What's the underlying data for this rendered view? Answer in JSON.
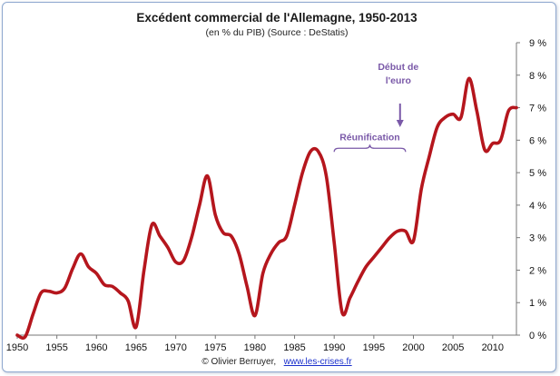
{
  "chart_data": {
    "type": "line",
    "title": "Excédent commercial de l'Allemagne, 1950-2013",
    "subtitle": "(en % du PIB) (Source : DeStatis)",
    "xlabel": "",
    "ylabel": "",
    "xlim": [
      1950,
      2013
    ],
    "ylim": [
      0,
      9
    ],
    "x_ticks": [
      1950,
      1955,
      1960,
      1965,
      1970,
      1975,
      1980,
      1985,
      1990,
      1995,
      2000,
      2005,
      2010
    ],
    "y_ticks": [
      "0 %",
      "1 %",
      "2 %",
      "3 %",
      "4 %",
      "5 %",
      "6 %",
      "7 %",
      "8 %",
      "9 %"
    ],
    "y_tick_values": [
      0,
      1,
      2,
      3,
      4,
      5,
      6,
      7,
      8,
      9
    ],
    "grid": false,
    "y_axis_side": "right",
    "series": [
      {
        "color": "#b5161d",
        "x": [
          1950,
          1951,
          1952,
          1953,
          1954,
          1955,
          1956,
          1957,
          1958,
          1959,
          1960,
          1961,
          1962,
          1963,
          1964,
          1965,
          1966,
          1967,
          1968,
          1969,
          1970,
          1971,
          1972,
          1973,
          1974,
          1975,
          1976,
          1977,
          1978,
          1979,
          1980,
          1981,
          1982,
          1983,
          1984,
          1985,
          1986,
          1987,
          1988,
          1989,
          1990,
          1991,
          1992,
          1993,
          1994,
          1995,
          1996,
          1997,
          1998,
          1999,
          2000,
          2001,
          2002,
          2003,
          2004,
          2005,
          2006,
          2007,
          2008,
          2009,
          2010,
          2011,
          2012,
          2013
        ],
        "values": [
          0.0,
          -0.05,
          0.65,
          1.3,
          1.35,
          1.3,
          1.45,
          2.05,
          2.5,
          2.1,
          1.9,
          1.55,
          1.5,
          1.3,
          1.05,
          0.25,
          2.0,
          3.4,
          3.05,
          2.7,
          2.25,
          2.3,
          3.0,
          4.0,
          4.9,
          3.7,
          3.15,
          3.05,
          2.5,
          1.5,
          0.6,
          1.9,
          2.5,
          2.85,
          3.05,
          4.0,
          5.0,
          5.65,
          5.65,
          4.9,
          2.85,
          0.7,
          1.15,
          1.65,
          2.1,
          2.4,
          2.7,
          3.0,
          3.2,
          3.2,
          2.9,
          4.5,
          5.5,
          6.4,
          6.7,
          6.8,
          6.7,
          7.9,
          6.9,
          5.7,
          5.9,
          6.0,
          6.9,
          7.0
        ]
      }
    ],
    "annotations": [
      {
        "text": "Réunification",
        "type": "bracket",
        "x_start": 1990,
        "x_end": 1999,
        "y": 5.75,
        "color": "#7a59a8"
      },
      {
        "text_lines": [
          "Début de",
          "l'euro"
        ],
        "type": "arrow",
        "x": 1999,
        "y": 6.4,
        "color": "#7a59a8"
      }
    ],
    "credit": "© Olivier Berruyer,",
    "credit_link": "www.les-crises.fr"
  }
}
